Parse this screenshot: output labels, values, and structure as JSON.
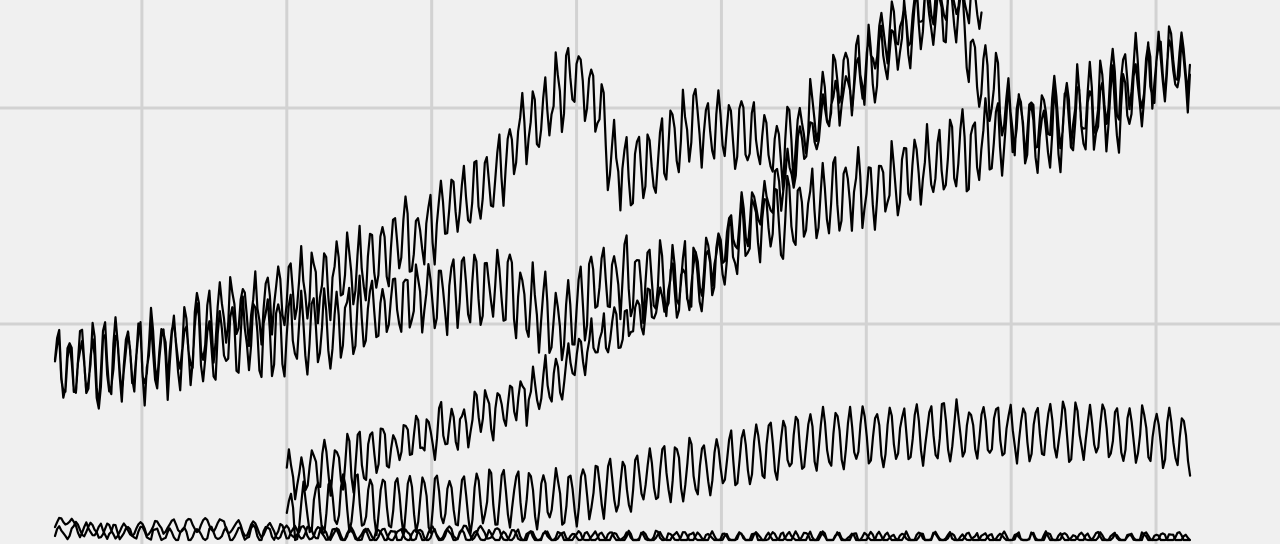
{
  "chart_data": {
    "type": "line",
    "title": "",
    "xlabel": "",
    "ylabel": "",
    "grid": true,
    "legend": "none",
    "line_color": "#000000",
    "background_color": "#f0f0f0",
    "grid_color": "#d2d2d2",
    "xlim": [
      0,
      100
    ],
    "ylim": [
      0,
      100
    ],
    "x_gridlines": [
      7.5,
      20,
      32.5,
      45,
      57.5,
      70,
      82.5,
      95
    ],
    "y_gridlines": [
      40,
      80
    ],
    "series": [
      {
        "period": 1.0,
        "amp": 6,
        "noise": 2.5,
        "trend": [
          [
            0,
            32
          ],
          [
            2,
            32
          ],
          [
            9,
            35
          ],
          [
            15,
            42
          ],
          [
            22,
            47
          ],
          [
            28,
            52
          ],
          [
            33,
            59
          ],
          [
            38,
            67
          ],
          [
            40,
            75
          ],
          [
            43,
            82
          ],
          [
            45,
            86
          ],
          [
            47,
            80
          ],
          [
            48,
            70
          ],
          [
            50,
            68
          ],
          [
            55,
            77
          ],
          [
            60,
            76
          ],
          [
            63,
            72
          ],
          [
            65,
            78
          ],
          [
            68,
            85
          ],
          [
            72,
            90
          ],
          [
            75,
            96
          ],
          [
            78,
            98
          ],
          [
            79,
            90
          ],
          [
            82,
            80
          ],
          [
            85,
            75
          ],
          [
            88,
            77
          ],
          [
            92,
            80
          ],
          [
            96,
            88
          ],
          [
            98,
            87
          ]
        ]
      },
      {
        "period": 1.0,
        "amp": 6,
        "noise": 2.5,
        "trend": [
          [
            0,
            32
          ],
          [
            3,
            32
          ],
          [
            8,
            33
          ],
          [
            12,
            36
          ],
          [
            18,
            38
          ],
          [
            23,
            39
          ],
          [
            30,
            44
          ],
          [
            36,
            46
          ],
          [
            39,
            47
          ],
          [
            42,
            42
          ],
          [
            44,
            40
          ],
          [
            46,
            46
          ],
          [
            48,
            49
          ],
          [
            51,
            48
          ],
          [
            53,
            47
          ],
          [
            55,
            49
          ],
          [
            57,
            50
          ],
          [
            60,
            58
          ],
          [
            63,
            60
          ],
          [
            66,
            62
          ],
          [
            68,
            64
          ],
          [
            72,
            66
          ],
          [
            75,
            70
          ],
          [
            79,
            72
          ],
          [
            82,
            76
          ],
          [
            87,
            79
          ],
          [
            92,
            84
          ],
          [
            96,
            89
          ],
          [
            98,
            89
          ]
        ]
      },
      {
        "period": 1.0,
        "amp": 4,
        "noise": 2.0,
        "trend": [
          [
            20,
            12
          ],
          [
            25,
            14
          ],
          [
            30,
            18
          ],
          [
            35,
            22
          ],
          [
            38,
            24
          ],
          [
            42,
            28
          ],
          [
            45,
            34
          ],
          [
            48,
            38
          ],
          [
            52,
            44
          ],
          [
            56,
            50
          ],
          [
            58,
            56
          ],
          [
            62,
            64
          ],
          [
            64,
            70
          ],
          [
            67,
            80
          ],
          [
            70,
            88
          ],
          [
            72,
            94
          ],
          [
            76,
            100
          ],
          [
            80,
            100
          ]
        ]
      },
      {
        "period": 1.15,
        "amp": 5,
        "noise": 1.2,
        "trend": [
          [
            20,
            4
          ],
          [
            24,
            7
          ],
          [
            28,
            7
          ],
          [
            32,
            7
          ],
          [
            36,
            7
          ],
          [
            40,
            8
          ],
          [
            44,
            8
          ],
          [
            48,
            10
          ],
          [
            52,
            12
          ],
          [
            56,
            14
          ],
          [
            60,
            16
          ],
          [
            64,
            18
          ],
          [
            68,
            19
          ],
          [
            72,
            19
          ],
          [
            76,
            20
          ],
          [
            80,
            20
          ],
          [
            84,
            20
          ],
          [
            88,
            20
          ],
          [
            92,
            20
          ],
          [
            96,
            19
          ],
          [
            98,
            18
          ]
        ]
      },
      {
        "period": 1.2,
        "amp": 1.2,
        "noise": 0.4,
        "trend": [
          [
            0,
            2
          ],
          [
            0.8,
            4
          ],
          [
            2,
            2
          ],
          [
            5,
            1.5
          ],
          [
            10,
            1
          ],
          [
            15,
            1
          ],
          [
            20,
            1.5
          ],
          [
            25,
            1
          ],
          [
            30,
            0.8
          ],
          [
            35,
            0.6
          ],
          [
            40,
            0.4
          ],
          [
            45,
            0.3
          ],
          [
            50,
            0.2
          ],
          [
            60,
            0.2
          ],
          [
            70,
            0.1
          ],
          [
            80,
            0.1
          ],
          [
            90,
            0.1
          ],
          [
            98,
            0.1
          ]
        ]
      },
      {
        "period": 1.4,
        "amp": 1.2,
        "noise": 0.3,
        "trend": [
          [
            0,
            1
          ],
          [
            2,
            2
          ],
          [
            5,
            1.5
          ],
          [
            10,
            2.5
          ],
          [
            14,
            2.8
          ],
          [
            17,
            2
          ],
          [
            20,
            1.5
          ],
          [
            25,
            1
          ],
          [
            30,
            0.8
          ],
          [
            35,
            1.5
          ],
          [
            38,
            1.2
          ],
          [
            40,
            0.4
          ],
          [
            45,
            0.3
          ],
          [
            50,
            0.2
          ],
          [
            60,
            0.2
          ],
          [
            70,
            0.1
          ],
          [
            80,
            0.1
          ],
          [
            90,
            0.1
          ],
          [
            98,
            0.1
          ]
        ]
      }
    ]
  }
}
